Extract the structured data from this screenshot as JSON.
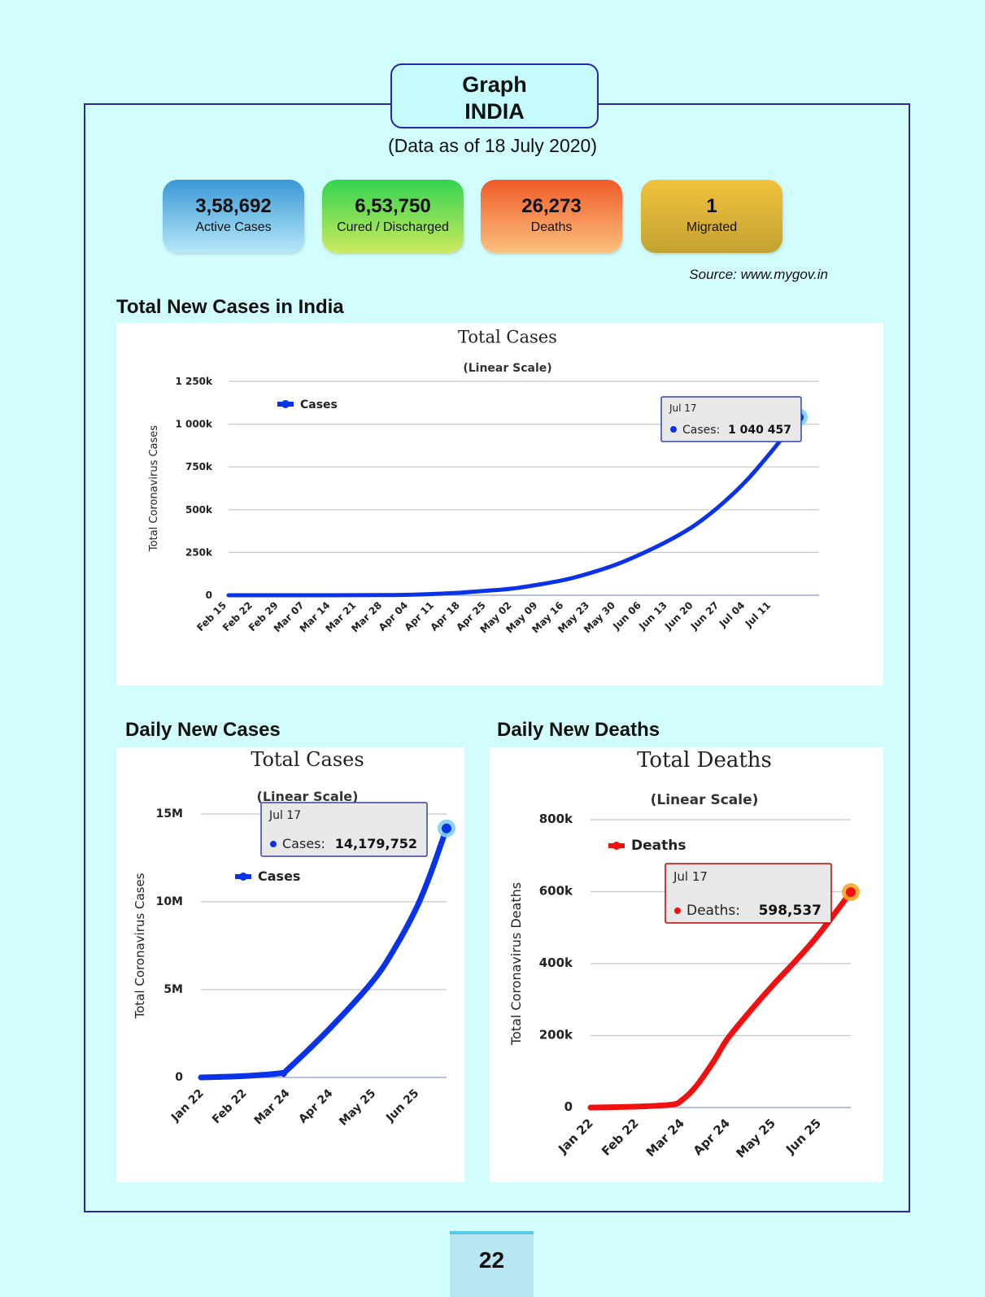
{
  "header": {
    "line1": "Graph",
    "line2": "INDIA",
    "subtitle": "(Data as of 18 July 2020)"
  },
  "stats": [
    {
      "value": "3,58,692",
      "label": "Active Cases"
    },
    {
      "value": "6,53,750",
      "label": "Cured / Discharged"
    },
    {
      "value": "26,273",
      "label": "Deaths"
    },
    {
      "value": "1",
      "label": "Migrated"
    }
  ],
  "source": "Source: www.mygov.in",
  "sections": {
    "total_new_cases": "Total New Cases in India",
    "daily_new_cases": "Daily New Cases",
    "daily_new_deaths": "Daily New Deaths"
  },
  "page_number": "22",
  "colors": {
    "cases": "#0a32e8",
    "deaths": "#f01010",
    "frame": "#2727a8",
    "background": "#d2fdfd"
  },
  "chart_data": [
    {
      "type": "line",
      "title": "Total Cases",
      "subtitle": "(Linear Scale)",
      "ylabel": "Total Coronavirus Cases",
      "xlabel": "",
      "ylim": [
        0,
        1250000
      ],
      "yticks": [
        0,
        250000,
        500000,
        750000,
        1000000,
        1250000
      ],
      "ytick_labels": [
        "0",
        "250k",
        "500k",
        "750k",
        "1 000k",
        "1 250k"
      ],
      "grid": true,
      "legend": "top-left",
      "categories": [
        "Feb 15",
        "Feb 22",
        "Feb 29",
        "Mar 07",
        "Mar 14",
        "Mar 21",
        "Mar 28",
        "Apr 04",
        "Apr 11",
        "Apr 18",
        "Apr 25",
        "May 02",
        "May 09",
        "May 16",
        "May 23",
        "May 30",
        "Jun 06",
        "Jun 13",
        "Jun 20",
        "Jun 27",
        "Jul 04",
        "Jul 11",
        "Jul 17"
      ],
      "series": [
        {
          "name": "Cases",
          "color": "#0a32e8",
          "values": [
            3,
            3,
            3,
            39,
            107,
            330,
            1024,
            3082,
            8447,
            15722,
            26496,
            39980,
            62939,
            90927,
            131868,
            182143,
            246628,
            320922,
            410461,
            528859,
            673165,
            849553,
            1040457
          ]
        }
      ],
      "tooltip": {
        "date": "Jul 17",
        "label": "Cases:",
        "value": "1 040 457"
      }
    },
    {
      "type": "line",
      "title": "Total Cases",
      "subtitle": "(Linear Scale)",
      "ylabel": "Total Coronavirus Cases",
      "xlabel": "",
      "ylim": [
        0,
        15000000
      ],
      "yticks": [
        0,
        5000000,
        10000000,
        15000000
      ],
      "ytick_labels": [
        "0",
        "5M",
        "10M",
        "15M"
      ],
      "grid": true,
      "legend": "middle-left",
      "x_start": "Jan 22",
      "x_end": "Jul 17",
      "xtick_labels": [
        "Jan 22",
        "Feb 22",
        "Mar 24",
        "Apr 24",
        "May 25",
        "Jun 25"
      ],
      "series": [
        {
          "name": "Cases",
          "color": "#0a32e8",
          "points": [
            [
              "Jan 22",
              0
            ],
            [
              "Feb 22",
              80000
            ],
            [
              "Mar 20",
              250000
            ],
            [
              "Mar 24",
              420000
            ],
            [
              "Apr 24",
              2800000
            ],
            [
              "May 25",
              5500000
            ],
            [
              "Jun 10",
              7400000
            ],
            [
              "Jun 25",
              9600000
            ],
            [
              "Jul 5",
              11500000
            ],
            [
              "Jul 17",
              14179752
            ]
          ]
        }
      ],
      "tooltip": {
        "date": "Jul 17",
        "label": "Cases:",
        "value": "14,179,752"
      }
    },
    {
      "type": "line",
      "title": "Total Deaths",
      "subtitle": "(Linear Scale)",
      "ylabel": "Total Coronavirus Deaths",
      "xlabel": "",
      "ylim": [
        0,
        800000
      ],
      "yticks": [
        0,
        200000,
        400000,
        600000,
        800000
      ],
      "ytick_labels": [
        "0",
        "200k",
        "400k",
        "600k",
        "800k"
      ],
      "grid": true,
      "legend": "top-left",
      "x_start": "Jan 22",
      "x_end": "Jul 17",
      "xtick_labels": [
        "Jan 22",
        "Feb 22",
        "Mar 24",
        "Apr 24",
        "May 25",
        "Jun 25"
      ],
      "series": [
        {
          "name": "Deaths",
          "color": "#f01010",
          "points": [
            [
              "Jan 22",
              0
            ],
            [
              "Feb 22",
              2500
            ],
            [
              "Mar 17",
              8000
            ],
            [
              "Mar 24",
              20000
            ],
            [
              "Apr 3",
              60000
            ],
            [
              "Apr 15",
              130000
            ],
            [
              "Apr 24",
              190000
            ],
            [
              "May 10",
              270000
            ],
            [
              "May 25",
              340000
            ],
            [
              "Jun 10",
              410000
            ],
            [
              "Jun 25",
              480000
            ],
            [
              "Jul 17",
              598537
            ]
          ]
        }
      ],
      "tooltip": {
        "date": "Jul 17",
        "label": "Deaths:",
        "value": "598,537"
      }
    }
  ]
}
